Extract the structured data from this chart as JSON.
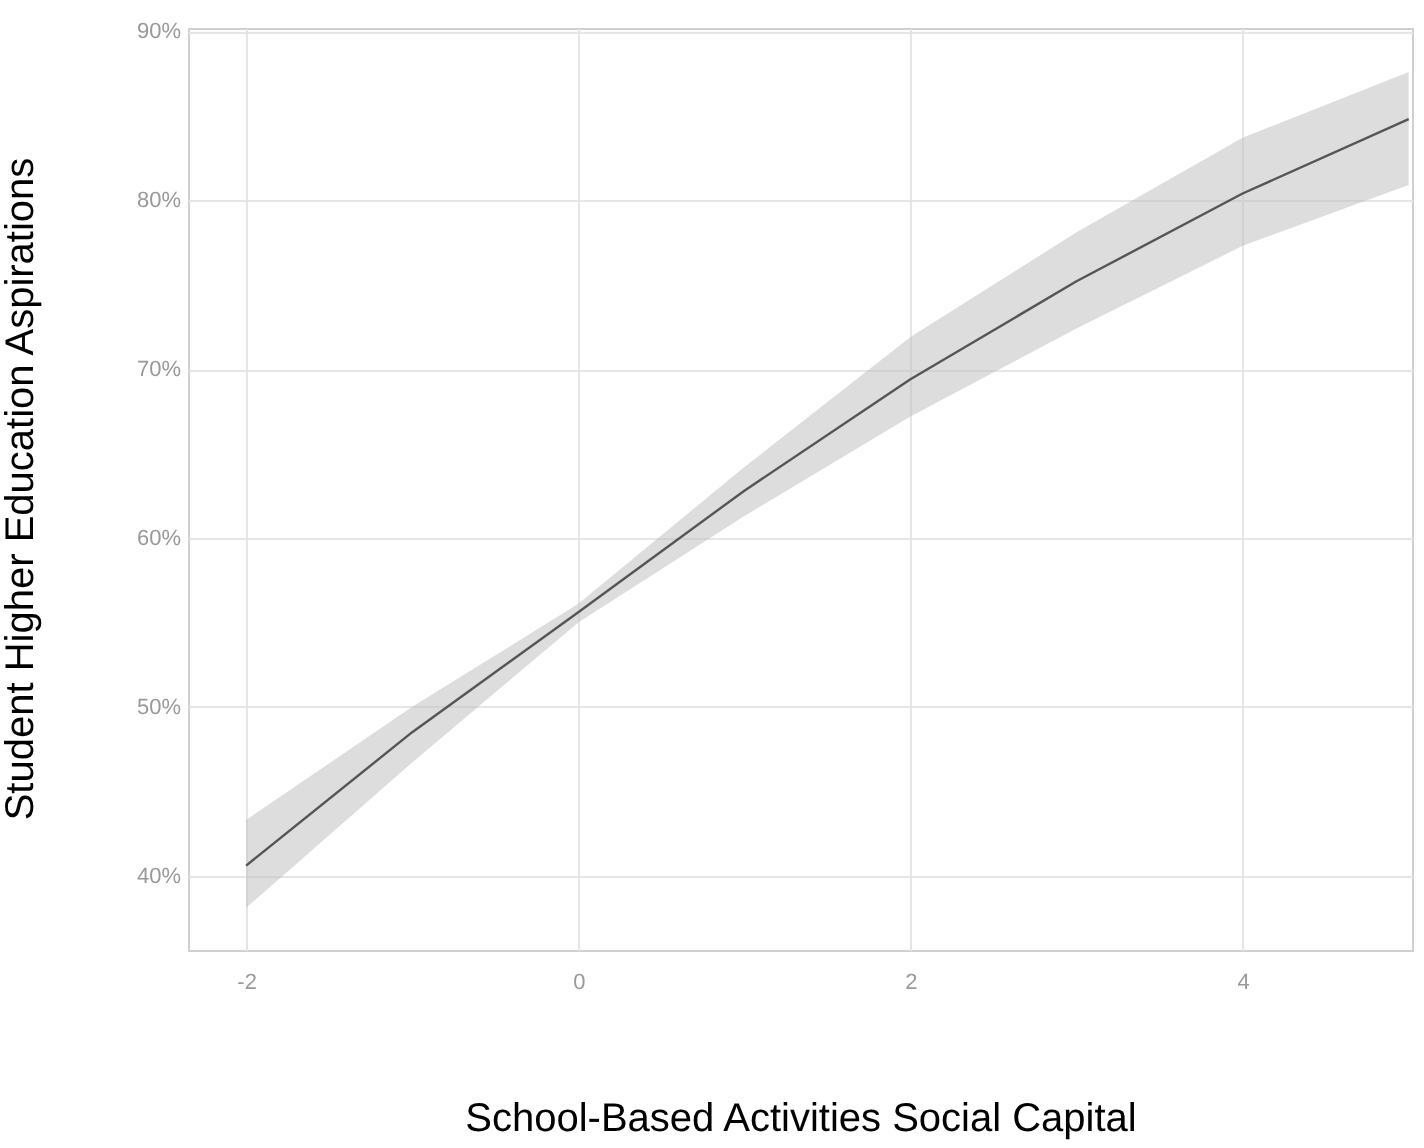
{
  "chart_data": {
    "type": "line",
    "xlabel": "School-Based Activities Social Capital",
    "ylabel": "Student Higher Education Aspirations",
    "x": [
      -2,
      -1,
      0,
      1,
      2,
      3,
      4,
      5
    ],
    "series": [
      {
        "color": "#555555",
        "values": [
          40.6,
          48.5,
          55.6,
          62.8,
          69.4,
          75.2,
          80.4,
          84.8
        ],
        "lower": [
          38.1,
          46.7,
          55.0,
          61.3,
          67.2,
          72.4,
          77.3,
          80.9
        ],
        "upper": [
          43.3,
          50.0,
          56.1,
          64.2,
          71.9,
          78.1,
          83.7,
          87.6
        ]
      }
    ],
    "xlim": [
      -2.35,
      5.02
    ],
    "xticks": [
      -2,
      0,
      2,
      4
    ],
    "ylim": [
      35.6,
      90.2
    ],
    "yticks": [
      {
        "value": 40,
        "label": "40%"
      },
      {
        "value": 50,
        "label": "50%"
      },
      {
        "value": 60,
        "label": "60%"
      },
      {
        "value": 70,
        "label": "70%"
      },
      {
        "value": 80,
        "label": "80%"
      },
      {
        "value": 90,
        "label": "90%"
      }
    ],
    "grid": true,
    "marker": "none",
    "line_style": "solid"
  }
}
